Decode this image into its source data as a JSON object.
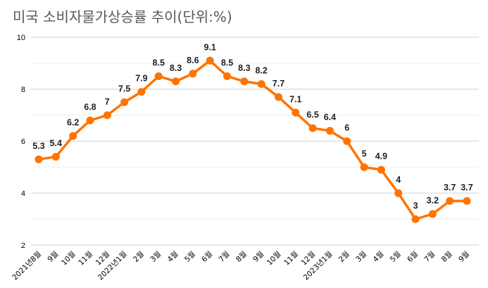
{
  "chart_data": {
    "type": "line",
    "title": "미국 소비자물가상승률 추이(단위:%)",
    "xlabel": "",
    "ylabel": "",
    "ylim": [
      2,
      10
    ],
    "yticks": [
      2,
      4,
      6,
      8,
      10
    ],
    "grid": true,
    "legend": "none",
    "color": "#FF7300",
    "categories": [
      "2021년8월",
      "9월",
      "10월",
      "11월",
      "12월",
      "2022년1월",
      "2월",
      "3월",
      "4월",
      "5월",
      "6월",
      "7월",
      "8월",
      "9월",
      "10월",
      "11월",
      "12월",
      "2023년1월",
      "2월",
      "3월",
      "4월",
      "5월",
      "6월",
      "7월",
      "8월",
      "9월"
    ],
    "values": [
      5.3,
      5.4,
      6.2,
      6.8,
      7,
      7.5,
      7.9,
      8.5,
      8.3,
      8.6,
      9.1,
      8.5,
      8.3,
      8.2,
      7.7,
      7.1,
      6.5,
      6.4,
      6,
      5,
      4.9,
      4,
      3,
      3.2,
      3.7,
      3.7
    ]
  }
}
